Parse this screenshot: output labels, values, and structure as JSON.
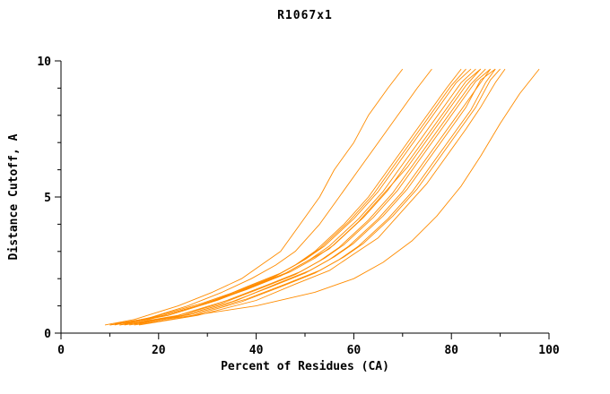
{
  "chart": {
    "title": "R1067x1",
    "xlabel": "Percent of Residues (CA)",
    "ylabel": "Distance Cutoff, A"
  },
  "chart_data": {
    "type": "line",
    "title": "R1067x1",
    "xlabel": "Percent of Residues (CA)",
    "ylabel": "Distance Cutoff, A",
    "xlim": [
      0,
      100
    ],
    "ylim": [
      0,
      10
    ],
    "x_ticks": [
      0,
      20,
      40,
      60,
      80,
      100
    ],
    "x_minor_ticks": [
      10,
      30,
      50,
      70,
      90
    ],
    "y_ticks": [
      0,
      5,
      10
    ],
    "y_minor_ticks": [
      1,
      2,
      3,
      4,
      6,
      7,
      8,
      9
    ],
    "grid": false,
    "legend": "none",
    "line_color": "#ff8c00",
    "axis_color": "#000000",
    "series": [
      {
        "points": [
          [
            9,
            0.3
          ],
          [
            15,
            0.5
          ],
          [
            24,
            1
          ],
          [
            31,
            1.5
          ],
          [
            37,
            2
          ],
          [
            41,
            2.5
          ],
          [
            45,
            3
          ],
          [
            49,
            4
          ],
          [
            53,
            5
          ],
          [
            56,
            6
          ],
          [
            60,
            7
          ],
          [
            63,
            8
          ],
          [
            67,
            9
          ],
          [
            70,
            9.7
          ]
        ]
      },
      {
        "points": [
          [
            10,
            0.3
          ],
          [
            17,
            0.5
          ],
          [
            26,
            1
          ],
          [
            33,
            1.5
          ],
          [
            39,
            2
          ],
          [
            44,
            2.5
          ],
          [
            48,
            3
          ],
          [
            53,
            4
          ],
          [
            57,
            5
          ],
          [
            61,
            6
          ],
          [
            65,
            7
          ],
          [
            69,
            8
          ],
          [
            73,
            9
          ],
          [
            76,
            9.7
          ]
        ]
      },
      {
        "points": [
          [
            10,
            0.3
          ],
          [
            18,
            0.5
          ],
          [
            28,
            1
          ],
          [
            36,
            1.5
          ],
          [
            43,
            2
          ],
          [
            48,
            2.5
          ],
          [
            52,
            3
          ],
          [
            58,
            4
          ],
          [
            63,
            5
          ],
          [
            67,
            6
          ],
          [
            71,
            7
          ],
          [
            75,
            8
          ],
          [
            79,
            9
          ],
          [
            82,
            9.7
          ]
        ]
      },
      {
        "points": [
          [
            11,
            0.3
          ],
          [
            19,
            0.6
          ],
          [
            29,
            1.1
          ],
          [
            37,
            1.6
          ],
          [
            44,
            2.1
          ],
          [
            49,
            2.6
          ],
          [
            53,
            3.1
          ],
          [
            59,
            4.1
          ],
          [
            64,
            5.1
          ],
          [
            68,
            6.1
          ],
          [
            72,
            7.1
          ],
          [
            76,
            8.1
          ],
          [
            80,
            9.1
          ],
          [
            83,
            9.7
          ]
        ]
      },
      {
        "points": [
          [
            11,
            0.35
          ],
          [
            20,
            0.6
          ],
          [
            30,
            1.1
          ],
          [
            38,
            1.7
          ],
          [
            45,
            2.2
          ],
          [
            50,
            2.7
          ],
          [
            54,
            3.2
          ],
          [
            60,
            4.2
          ],
          [
            65,
            5.2
          ],
          [
            69,
            6.2
          ],
          [
            73,
            7.2
          ],
          [
            77,
            8.2
          ],
          [
            81,
            9.2
          ],
          [
            84,
            9.7
          ]
        ]
      },
      {
        "points": [
          [
            12,
            0.35
          ],
          [
            21,
            0.65
          ],
          [
            31,
            1.15
          ],
          [
            39,
            1.7
          ],
          [
            46,
            2.2
          ],
          [
            51,
            2.7
          ],
          [
            55,
            3.2
          ],
          [
            61,
            4.2
          ],
          [
            66,
            5.2
          ],
          [
            70,
            6.2
          ],
          [
            74,
            7.2
          ],
          [
            78,
            8.2
          ],
          [
            82,
            9.2
          ],
          [
            85,
            9.7
          ]
        ]
      },
      {
        "points": [
          [
            12,
            0.3
          ],
          [
            20,
            0.6
          ],
          [
            30,
            1.1
          ],
          [
            38,
            1.6
          ],
          [
            45,
            2.1
          ],
          [
            50,
            2.6
          ],
          [
            55,
            3.1
          ],
          [
            61,
            4.1
          ],
          [
            66,
            5.1
          ],
          [
            71,
            6.1
          ],
          [
            75,
            7.1
          ],
          [
            79,
            8.1
          ],
          [
            83,
            9.1
          ],
          [
            86,
            9.7
          ]
        ]
      },
      {
        "points": [
          [
            13,
            0.35
          ],
          [
            22,
            0.65
          ],
          [
            32,
            1.2
          ],
          [
            40,
            1.75
          ],
          [
            47,
            2.25
          ],
          [
            52,
            2.75
          ],
          [
            56,
            3.25
          ],
          [
            62,
            4.25
          ],
          [
            67,
            5.25
          ],
          [
            71,
            6.25
          ],
          [
            75,
            7.25
          ],
          [
            79,
            8.25
          ],
          [
            83,
            9.25
          ],
          [
            86,
            9.7
          ]
        ]
      },
      {
        "points": [
          [
            13,
            0.3
          ],
          [
            23,
            0.6
          ],
          [
            33,
            1.1
          ],
          [
            41,
            1.65
          ],
          [
            48,
            2.15
          ],
          [
            53,
            2.65
          ],
          [
            57,
            3.15
          ],
          [
            63,
            4.15
          ],
          [
            68,
            5.15
          ],
          [
            72,
            6.15
          ],
          [
            76,
            7.15
          ],
          [
            80,
            8.15
          ],
          [
            84,
            9.15
          ],
          [
            87,
            9.7
          ]
        ]
      },
      {
        "points": [
          [
            14,
            0.35
          ],
          [
            24,
            0.65
          ],
          [
            34,
            1.2
          ],
          [
            42,
            1.75
          ],
          [
            49,
            2.25
          ],
          [
            54,
            2.75
          ],
          [
            58,
            3.25
          ],
          [
            64,
            4.25
          ],
          [
            69,
            5.25
          ],
          [
            73,
            6.25
          ],
          [
            77,
            7.25
          ],
          [
            81,
            8.25
          ],
          [
            85,
            9.25
          ],
          [
            88,
            9.7
          ]
        ]
      },
      {
        "points": [
          [
            14,
            0.3
          ],
          [
            24,
            0.6
          ],
          [
            35,
            1.15
          ],
          [
            43,
            1.7
          ],
          [
            50,
            2.2
          ],
          [
            55,
            2.7
          ],
          [
            59,
            3.2
          ],
          [
            65,
            4.2
          ],
          [
            70,
            5.2
          ],
          [
            74,
            6.2
          ],
          [
            78,
            7.2
          ],
          [
            82,
            8.2
          ],
          [
            86,
            9.2
          ],
          [
            88,
            9.7
          ]
        ]
      },
      {
        "points": [
          [
            15,
            0.35
          ],
          [
            25,
            0.65
          ],
          [
            36,
            1.2
          ],
          [
            44,
            1.8
          ],
          [
            51,
            2.3
          ],
          [
            56,
            2.8
          ],
          [
            60,
            3.3
          ],
          [
            66,
            4.3
          ],
          [
            71,
            5.3
          ],
          [
            75,
            6.3
          ],
          [
            79,
            7.3
          ],
          [
            83,
            8.3
          ],
          [
            86,
            9.3
          ],
          [
            89,
            9.7
          ]
        ]
      },
      {
        "points": [
          [
            15,
            0.3
          ],
          [
            26,
            0.6
          ],
          [
            37,
            1.15
          ],
          [
            45,
            1.7
          ],
          [
            52,
            2.2
          ],
          [
            57,
            2.7
          ],
          [
            61,
            3.2
          ],
          [
            67,
            4.2
          ],
          [
            72,
            5.2
          ],
          [
            76,
            6.2
          ],
          [
            80,
            7.2
          ],
          [
            84,
            8.2
          ],
          [
            87,
            9.2
          ],
          [
            89,
            9.7
          ]
        ]
      },
      {
        "points": [
          [
            16,
            0.35
          ],
          [
            27,
            0.7
          ],
          [
            38,
            1.25
          ],
          [
            46,
            1.8
          ],
          [
            53,
            2.3
          ],
          [
            58,
            2.8
          ],
          [
            62,
            3.3
          ],
          [
            68,
            4.3
          ],
          [
            73,
            5.3
          ],
          [
            77,
            6.3
          ],
          [
            81,
            7.3
          ],
          [
            85,
            8.3
          ],
          [
            88,
            9.3
          ],
          [
            90,
            9.7
          ]
        ]
      },
      {
        "points": [
          [
            16,
            0.3
          ],
          [
            28,
            0.65
          ],
          [
            40,
            1.2
          ],
          [
            48,
            1.8
          ],
          [
            55,
            2.3
          ],
          [
            60,
            2.9
          ],
          [
            65,
            3.5
          ],
          [
            70,
            4.5
          ],
          [
            75,
            5.5
          ],
          [
            79,
            6.5
          ],
          [
            83,
            7.5
          ],
          [
            86,
            8.3
          ],
          [
            89,
            9.2
          ],
          [
            91,
            9.7
          ]
        ]
      },
      {
        "points": [
          [
            12,
            0.3
          ],
          [
            25,
            0.6
          ],
          [
            40,
            1
          ],
          [
            52,
            1.5
          ],
          [
            60,
            2
          ],
          [
            66,
            2.6
          ],
          [
            72,
            3.4
          ],
          [
            77,
            4.3
          ],
          [
            82,
            5.4
          ],
          [
            86,
            6.5
          ],
          [
            90,
            7.7
          ],
          [
            94,
            8.8
          ],
          [
            98,
            9.7
          ]
        ]
      }
    ]
  }
}
